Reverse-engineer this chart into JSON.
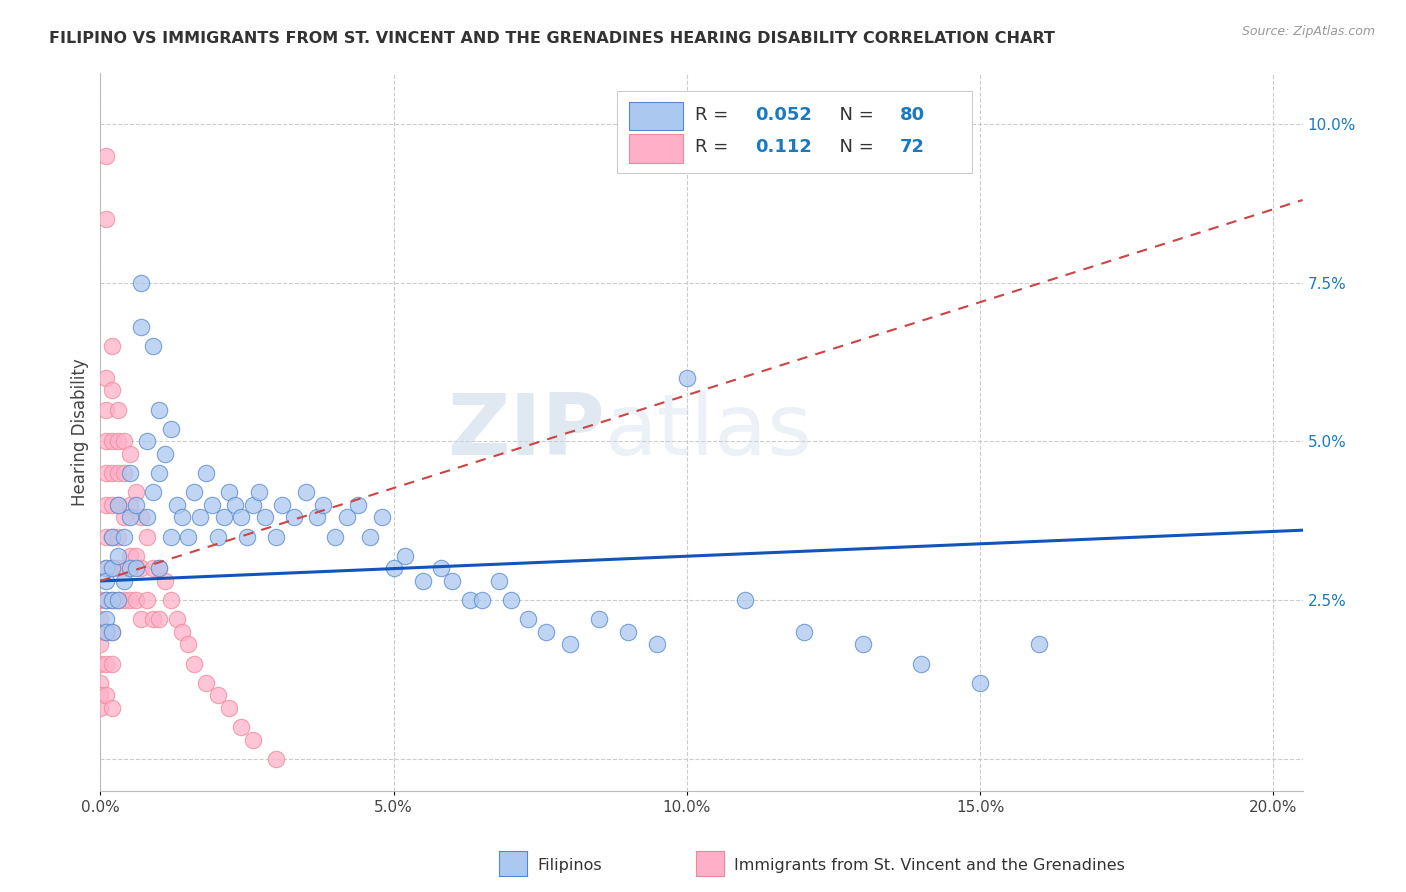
{
  "title": "FILIPINO VS IMMIGRANTS FROM ST. VINCENT AND THE GRENADINES HEARING DISABILITY CORRELATION CHART",
  "source": "Source: ZipAtlas.com",
  "ylabel": "Hearing Disability",
  "xlim": [
    0.0,
    0.205
  ],
  "ylim": [
    -0.005,
    0.108
  ],
  "xticks": [
    0.0,
    0.05,
    0.1,
    0.15,
    0.2
  ],
  "xtick_labels": [
    "0.0%",
    "5.0%",
    "10.0%",
    "15.0%",
    "20.0%"
  ],
  "yticks": [
    0.0,
    0.025,
    0.05,
    0.075,
    0.1
  ],
  "ytick_labels": [
    "",
    "2.5%",
    "5.0%",
    "7.5%",
    "10.0%"
  ],
  "filipino_color": "#aac8f0",
  "filipino_edge": "#5588cc",
  "svg_color": "#ffb0c8",
  "svg_edge": "#ee8899",
  "trend_filipino_color": "#1155bb",
  "trend_svg_color": "#cc4444",
  "legend_R1": "0.052",
  "legend_N1": "80",
  "legend_R2": "0.112",
  "legend_N2": "72",
  "watermark_zip": "ZIP",
  "watermark_atlas": "atlas",
  "fil_trend_x0": 0.0,
  "fil_trend_y0": 0.028,
  "fil_trend_x1": 0.205,
  "fil_trend_y1": 0.036,
  "svg_trend_x0": 0.0,
  "svg_trend_y0": 0.028,
  "svg_trend_x1": 0.205,
  "svg_trend_y1": 0.088,
  "filipino_x": [
    0.001,
    0.001,
    0.001,
    0.001,
    0.001,
    0.002,
    0.002,
    0.002,
    0.002,
    0.003,
    0.003,
    0.003,
    0.004,
    0.004,
    0.005,
    0.005,
    0.005,
    0.006,
    0.006,
    0.007,
    0.007,
    0.008,
    0.008,
    0.009,
    0.009,
    0.01,
    0.01,
    0.01,
    0.011,
    0.012,
    0.012,
    0.013,
    0.014,
    0.015,
    0.016,
    0.017,
    0.018,
    0.019,
    0.02,
    0.021,
    0.022,
    0.023,
    0.024,
    0.025,
    0.026,
    0.027,
    0.028,
    0.03,
    0.031,
    0.033,
    0.035,
    0.037,
    0.038,
    0.04,
    0.042,
    0.044,
    0.046,
    0.048,
    0.05,
    0.052,
    0.055,
    0.058,
    0.06,
    0.063,
    0.065,
    0.068,
    0.07,
    0.073,
    0.076,
    0.08,
    0.085,
    0.09,
    0.095,
    0.1,
    0.11,
    0.12,
    0.13,
    0.14,
    0.15,
    0.16
  ],
  "filipino_y": [
    0.03,
    0.028,
    0.025,
    0.022,
    0.02,
    0.035,
    0.03,
    0.025,
    0.02,
    0.04,
    0.032,
    0.025,
    0.035,
    0.028,
    0.045,
    0.038,
    0.03,
    0.04,
    0.03,
    0.075,
    0.068,
    0.05,
    0.038,
    0.065,
    0.042,
    0.055,
    0.045,
    0.03,
    0.048,
    0.052,
    0.035,
    0.04,
    0.038,
    0.035,
    0.042,
    0.038,
    0.045,
    0.04,
    0.035,
    0.038,
    0.042,
    0.04,
    0.038,
    0.035,
    0.04,
    0.042,
    0.038,
    0.035,
    0.04,
    0.038,
    0.042,
    0.038,
    0.04,
    0.035,
    0.038,
    0.04,
    0.035,
    0.038,
    0.03,
    0.032,
    0.028,
    0.03,
    0.028,
    0.025,
    0.025,
    0.028,
    0.025,
    0.022,
    0.02,
    0.018,
    0.022,
    0.02,
    0.018,
    0.06,
    0.025,
    0.02,
    0.018,
    0.015,
    0.012,
    0.018
  ],
  "svg_x": [
    0.0,
    0.0,
    0.0,
    0.0,
    0.0,
    0.0,
    0.0,
    0.0,
    0.001,
    0.001,
    0.001,
    0.001,
    0.001,
    0.001,
    0.001,
    0.001,
    0.001,
    0.001,
    0.001,
    0.001,
    0.002,
    0.002,
    0.002,
    0.002,
    0.002,
    0.002,
    0.002,
    0.002,
    0.002,
    0.002,
    0.003,
    0.003,
    0.003,
    0.003,
    0.003,
    0.003,
    0.003,
    0.004,
    0.004,
    0.004,
    0.004,
    0.004,
    0.005,
    0.005,
    0.005,
    0.005,
    0.006,
    0.006,
    0.006,
    0.007,
    0.007,
    0.007,
    0.008,
    0.008,
    0.009,
    0.009,
    0.01,
    0.01,
    0.011,
    0.012,
    0.013,
    0.014,
    0.015,
    0.016,
    0.018,
    0.02,
    0.022,
    0.024,
    0.026,
    0.03,
    0.001,
    0.002
  ],
  "svg_y": [
    0.025,
    0.022,
    0.02,
    0.018,
    0.015,
    0.012,
    0.01,
    0.008,
    0.095,
    0.085,
    0.06,
    0.055,
    0.05,
    0.045,
    0.04,
    0.035,
    0.03,
    0.025,
    0.02,
    0.015,
    0.065,
    0.058,
    0.05,
    0.045,
    0.04,
    0.035,
    0.03,
    0.025,
    0.02,
    0.015,
    0.055,
    0.05,
    0.045,
    0.04,
    0.035,
    0.03,
    0.025,
    0.05,
    0.045,
    0.038,
    0.03,
    0.025,
    0.048,
    0.04,
    0.032,
    0.025,
    0.042,
    0.032,
    0.025,
    0.038,
    0.03,
    0.022,
    0.035,
    0.025,
    0.03,
    0.022,
    0.03,
    0.022,
    0.028,
    0.025,
    0.022,
    0.02,
    0.018,
    0.015,
    0.012,
    0.01,
    0.008,
    0.005,
    0.003,
    0.0,
    0.01,
    0.008
  ]
}
